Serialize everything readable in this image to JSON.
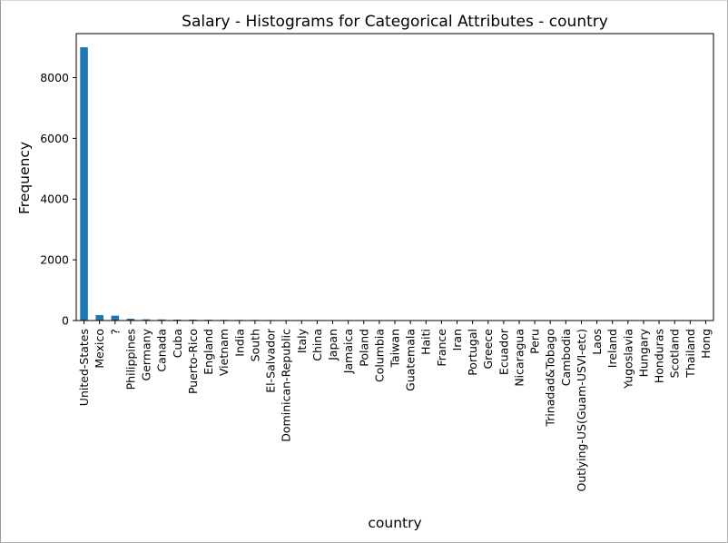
{
  "chart_data": {
    "type": "bar",
    "title": "Salary - Histograms for Categorical Attributes - country",
    "xlabel": "country",
    "ylabel": "Frequency",
    "ylim": [
      0,
      9450
    ],
    "yticks": [
      0,
      2000,
      4000,
      6000,
      8000
    ],
    "grid": false,
    "legend": "none",
    "bar_color": "#1f77b4",
    "categories": [
      "United-States",
      "Mexico",
      "?",
      "Philippines",
      "Germany",
      "Canada",
      "Cuba",
      "Puerto-Rico",
      "England",
      "Vietnam",
      "India",
      "South",
      "El-Salvador",
      "Dominican-Republic",
      "Italy",
      "China",
      "Japan",
      "Jamaica",
      "Poland",
      "Columbia",
      "Taiwan",
      "Guatemala",
      "Haiti",
      "France",
      "Iran",
      "Portugal",
      "Greece",
      "Ecuador",
      "Nicaragua",
      "Peru",
      "Trinadad&Tobago",
      "Cambodia",
      "Outlying-US(Guam-USVI-etc)",
      "Laos",
      "Ireland",
      "Yugoslavia",
      "Hungary",
      "Honduras",
      "Scotland",
      "Thailand",
      "Hong"
    ],
    "values": [
      9000,
      180,
      160,
      60,
      40,
      35,
      30,
      30,
      25,
      22,
      20,
      20,
      18,
      17,
      16,
      16,
      15,
      15,
      14,
      13,
      13,
      12,
      10,
      9,
      8,
      8,
      7,
      7,
      7,
      6,
      5,
      5,
      5,
      4,
      4,
      4,
      3,
      3,
      3,
      3,
      3
    ]
  }
}
